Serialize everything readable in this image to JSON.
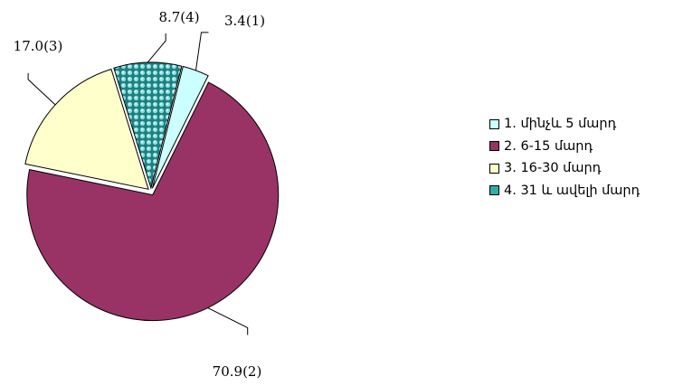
{
  "chart_data": {
    "type": "pie",
    "categories": [
      "1. մինչև 5 մարդ",
      "2. 6-15 մարդ",
      "3. 16-30 մարդ",
      "4. 31 և ավելի մարդ"
    ],
    "values": [
      3.4,
      70.9,
      17.0,
      8.7
    ],
    "data_labels": [
      "3.4(1)",
      "70.9(2)",
      "17.0(3)",
      "8.7(4)"
    ],
    "colors": [
      "#ccffff",
      "#993366",
      "#ffffcc",
      "#33aaaa"
    ],
    "exploded": true,
    "legend_position": "right",
    "title": ""
  }
}
